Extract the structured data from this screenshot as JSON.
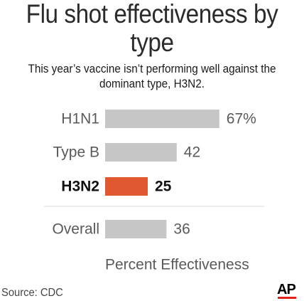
{
  "colors": {
    "bar_default": "#c6c6c6",
    "bar_highlight": "#e0582f",
    "label_default": "#5a5a5a",
    "label_highlight": "#111111",
    "ap_red": "#e2231a"
  },
  "header": {
    "title": "Flu shot effectiveness by type",
    "subtitle": "This year’s vaccine isn’t performing well against the dominant type, H3N2."
  },
  "footer": {
    "source": "Source: CDC",
    "logo_text": "AP"
  },
  "chart_data": {
    "type": "bar",
    "orientation": "horizontal",
    "categories": [
      "H1N1",
      "Type B",
      "H3N2",
      "Overall"
    ],
    "values": [
      67,
      42,
      25,
      36
    ],
    "value_labels": [
      "67%",
      "42",
      "25",
      "36"
    ],
    "highlight": "H3N2",
    "title": "Flu shot effectiveness by type",
    "xlabel": "Percent Effectiveness",
    "ylabel": "",
    "xlim": [
      0,
      100
    ],
    "grid": false,
    "legend": "none"
  }
}
